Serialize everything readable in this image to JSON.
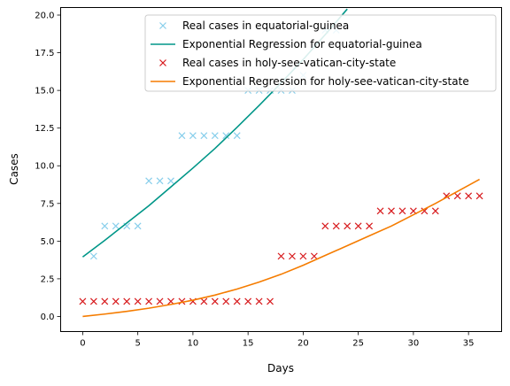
{
  "chart_data": {
    "type": "line",
    "title": "",
    "xlabel": "Days",
    "ylabel": "Cases",
    "xlim": [
      -2.0,
      38.0
    ],
    "ylim": [
      -1.0,
      20.5
    ],
    "xticks": [
      0,
      5,
      10,
      15,
      20,
      25,
      30,
      35
    ],
    "yticks": [
      0.0,
      2.5,
      5.0,
      7.5,
      10.0,
      12.5,
      15.0,
      17.5,
      20.0
    ],
    "xtick_labels": [
      "0",
      "5",
      "10",
      "15",
      "20",
      "25",
      "30",
      "35"
    ],
    "ytick_labels": [
      "0.0",
      "2.5",
      "5.0",
      "7.5",
      "10.0",
      "12.5",
      "15.0",
      "17.5",
      "20.0"
    ],
    "grid": false,
    "legend_position": "top-right",
    "series": [
      {
        "name": "Real cases in equatorial-guinea",
        "kind": "marker",
        "marker": "x",
        "color": "#87ceeb",
        "x": [
          1,
          2,
          3,
          4,
          5,
          6,
          7,
          8,
          9,
          10,
          11,
          12,
          13,
          14,
          15,
          16,
          17,
          18,
          19,
          20,
          21,
          22,
          23
        ],
        "y": [
          4,
          6,
          6,
          6,
          6,
          9,
          9,
          9,
          12,
          12,
          12,
          12,
          12,
          12,
          15,
          15,
          15,
          15,
          15,
          16,
          18,
          19,
          19
        ]
      },
      {
        "name": "Exponential Regression for equatorial-guinea",
        "kind": "line",
        "color": "#009688",
        "x": [
          0,
          2,
          4,
          6,
          8,
          10,
          12,
          14,
          16,
          17,
          18,
          20,
          22,
          24
        ],
        "y": [
          3.95,
          5.05,
          6.2,
          7.35,
          8.6,
          9.85,
          11.15,
          12.55,
          14.0,
          14.75,
          15.5,
          17.05,
          18.7,
          20.4
        ]
      },
      {
        "name": "Real cases in holy-see-vatican-city-state",
        "kind": "marker",
        "marker": "x",
        "color": "#d7191c",
        "x": [
          0,
          1,
          2,
          3,
          4,
          5,
          6,
          7,
          8,
          9,
          10,
          11,
          12,
          13,
          14,
          15,
          16,
          17,
          18,
          19,
          20,
          21,
          22,
          23,
          24,
          25,
          26,
          27,
          28,
          29,
          30,
          31,
          32,
          33,
          34,
          35,
          36
        ],
        "y": [
          1,
          1,
          1,
          1,
          1,
          1,
          1,
          1,
          1,
          1,
          1,
          1,
          1,
          1,
          1,
          1,
          1,
          1,
          4,
          4,
          4,
          4,
          6,
          6,
          6,
          6,
          6,
          7,
          7,
          7,
          7,
          7,
          7,
          8,
          8,
          8,
          8
        ]
      },
      {
        "name": "Exponential Regression for holy-see-vatican-city-state",
        "kind": "line",
        "color": "#f57c00",
        "x": [
          0,
          2,
          4,
          6,
          8,
          10,
          12,
          14,
          16,
          18,
          20,
          22,
          24,
          26,
          28,
          30,
          32,
          34,
          36
        ],
        "y": [
          0.0,
          0.16,
          0.34,
          0.55,
          0.8,
          1.08,
          1.42,
          1.82,
          2.28,
          2.8,
          3.4,
          4.05,
          4.7,
          5.35,
          6.0,
          6.75,
          7.5,
          8.3,
          9.1
        ]
      }
    ]
  }
}
